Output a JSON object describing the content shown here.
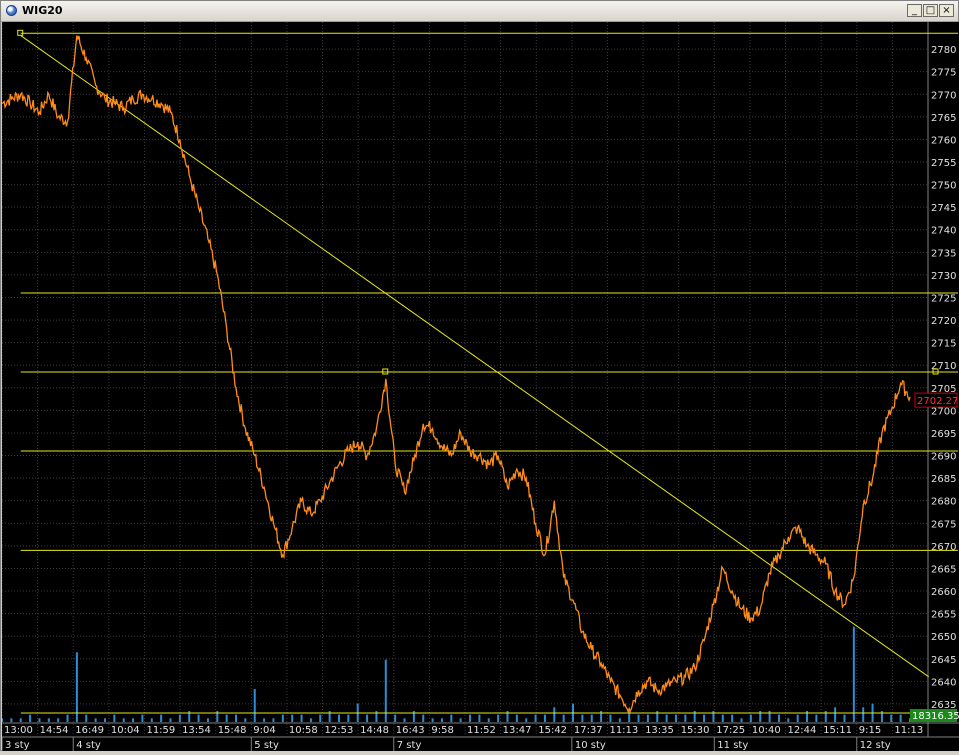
{
  "window": {
    "title": "WIG20",
    "buttons": {
      "minimize": "_",
      "maximize": "□",
      "close": "×"
    }
  },
  "colors": {
    "background": "#000000",
    "grid": "#3a3a3a",
    "price_line": "#ff8c1a",
    "volume": "#2a8fd8",
    "guide_lines": "#e6e61e",
    "current_price_box": "#cc0000",
    "volume_box": "#1a8a1a"
  },
  "chart_data": {
    "type": "line",
    "title": "WIG20",
    "ylim": [
      2631,
      2786
    ],
    "grid": true,
    "y_ticks": [
      2635,
      2640,
      2645,
      2650,
      2655,
      2660,
      2665,
      2670,
      2675,
      2680,
      2685,
      2690,
      2695,
      2700,
      2705,
      2710,
      2715,
      2720,
      2725,
      2730,
      2735,
      2740,
      2745,
      2750,
      2755,
      2760,
      2765,
      2770,
      2775,
      2780
    ],
    "x_time_labels": [
      "13:00",
      "14:54",
      "16:49",
      "10:04",
      "11:59",
      "13:54",
      "15:48",
      "9:04",
      "10:58",
      "12:53",
      "14:48",
      "16:43",
      "9:58",
      "11:52",
      "13:47",
      "15:42",
      "17:37",
      "11:13",
      "13:35",
      "15:30",
      "17:25",
      "10:40",
      "12:44",
      "15:11",
      "9:15",
      "11:13"
    ],
    "x_date_labels": [
      "3 sty",
      "4 sty",
      "5 sty",
      "7 sty",
      "10 sty",
      "11 sty",
      "12 sty"
    ],
    "price_series": {
      "name": "WIG20",
      "values": [
        2768,
        2769,
        2770,
        2768,
        2766,
        2770,
        2765,
        2764,
        2783,
        2778,
        2772,
        2769,
        2768,
        2767,
        2769,
        2770,
        2769,
        2768,
        2766,
        2760,
        2752,
        2745,
        2738,
        2730,
        2718,
        2705,
        2696,
        2690,
        2683,
        2675,
        2668,
        2674,
        2680,
        2677,
        2680,
        2684,
        2688,
        2691,
        2693,
        2690,
        2696,
        2707,
        2688,
        2682,
        2689,
        2697,
        2696,
        2692,
        2690,
        2695,
        2691,
        2690,
        2688,
        2690,
        2683,
        2687,
        2685,
        2675,
        2668,
        2680,
        2663,
        2658,
        2651,
        2647,
        2644,
        2640,
        2637,
        2634,
        2638,
        2640,
        2638,
        2639,
        2640,
        2641,
        2643,
        2649,
        2657,
        2665,
        2660,
        2656,
        2654,
        2656,
        2664,
        2668,
        2672,
        2674,
        2670,
        2668,
        2666,
        2660,
        2657,
        2663,
        2679,
        2685,
        2695,
        2700,
        2706,
        2703
      ]
    },
    "trend_line": {
      "start": [
        2,
        2783
      ],
      "end": [
        99,
        2641
      ]
    },
    "horizontal_levels": [
      {
        "value": 2783.5,
        "start": 2
      },
      {
        "value": 2726,
        "start": 2
      },
      {
        "value": 2708.5,
        "start": 2
      },
      {
        "value": 2691,
        "start": 2
      },
      {
        "value": 2669,
        "start": 2
      },
      {
        "value": 2633,
        "start": 2
      }
    ],
    "volume_series": {
      "values": [
        1,
        1,
        1,
        2,
        1,
        1,
        1,
        2,
        19,
        2,
        1,
        1,
        2,
        1,
        1,
        2,
        1,
        2,
        1,
        2,
        3,
        2,
        1,
        3,
        2,
        2,
        1,
        9,
        1,
        1,
        2,
        2,
        2,
        1,
        2,
        3,
        2,
        2,
        5,
        2,
        3,
        17,
        2,
        1,
        3,
        2,
        1,
        1,
        2,
        1,
        2,
        2,
        1,
        2,
        3,
        2,
        1,
        2,
        2,
        4,
        2,
        5,
        2,
        2,
        3,
        2,
        1,
        3,
        2,
        2,
        3,
        2,
        2,
        2,
        3,
        2,
        3,
        2,
        2,
        1,
        2,
        3,
        3,
        2,
        1,
        2,
        3,
        2,
        3,
        4,
        2,
        26,
        4,
        5,
        3,
        2,
        2,
        1
      ]
    },
    "annotations": {
      "current_price": "2702.27",
      "volume": "18316.35"
    }
  }
}
